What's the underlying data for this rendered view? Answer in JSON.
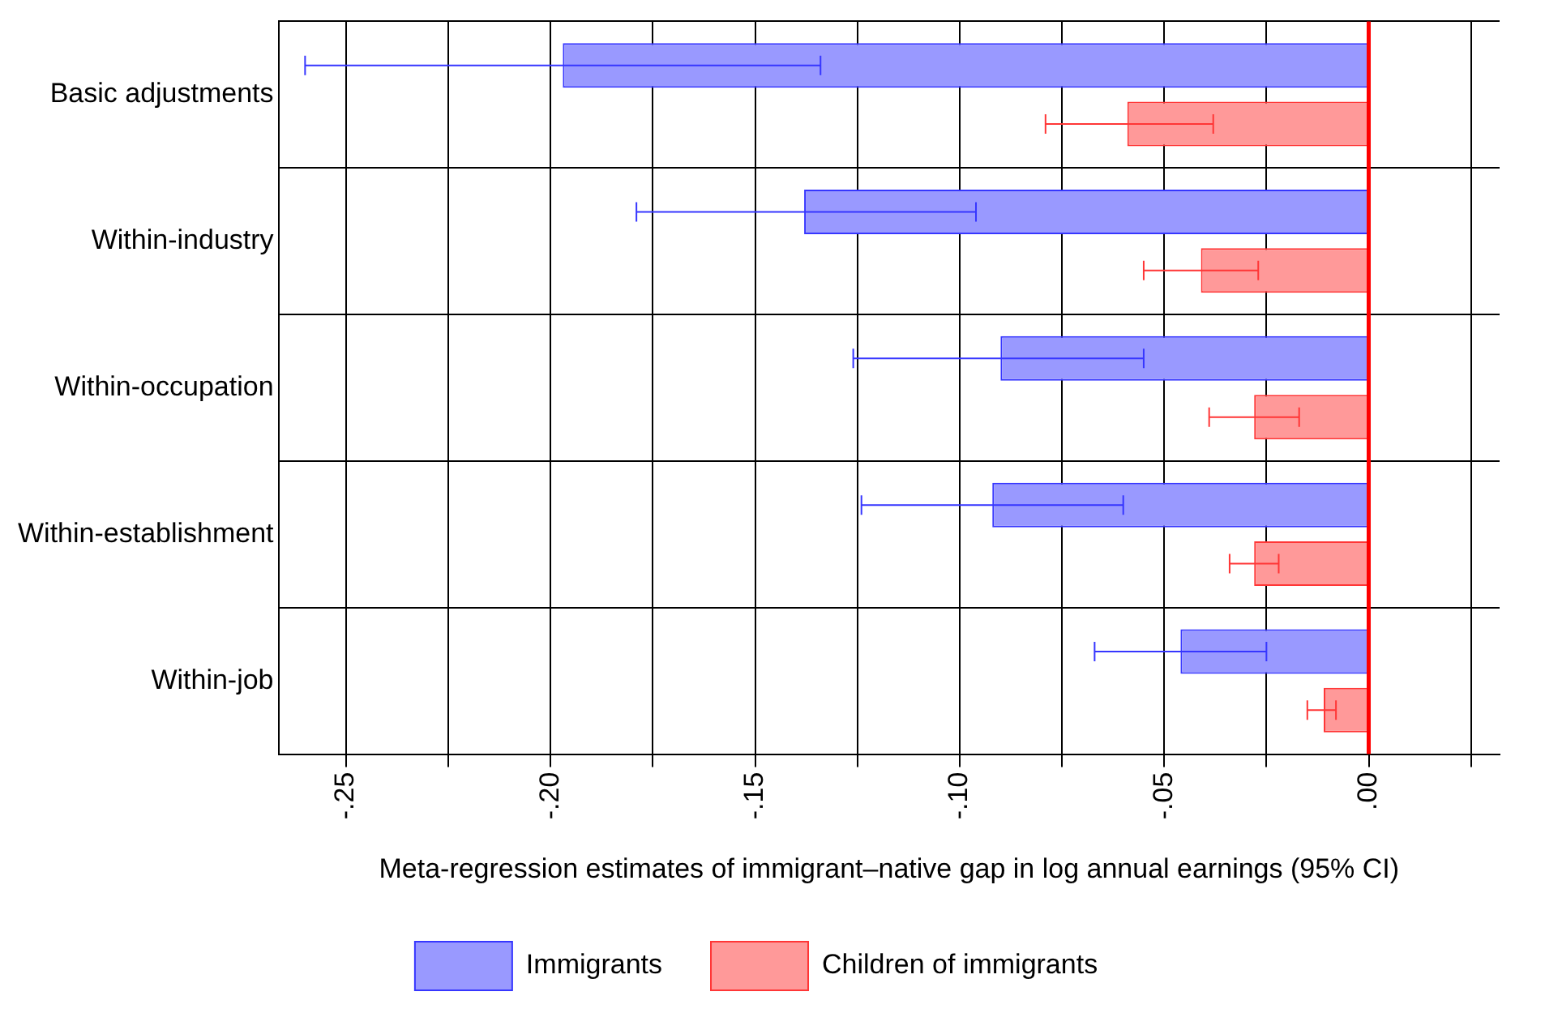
{
  "chart_data": {
    "type": "bar",
    "orientation": "horizontal",
    "xlabel": "Meta-regression estimates of immigrant–native gap in log annual earnings (95% CI)",
    "categories": [
      "Basic adjustments",
      "Within-industry",
      "Within-occupation",
      "Within-establishment",
      "Within-job"
    ],
    "series": [
      {
        "name": "Immigrants",
        "color": "#9999ff",
        "values": [
          -0.197,
          -0.138,
          -0.09,
          -0.092,
          -0.046
        ],
        "errors": [
          [
            -0.26,
            -0.134
          ],
          [
            -0.179,
            -0.096
          ],
          [
            -0.126,
            -0.055
          ],
          [
            -0.124,
            -0.06
          ],
          [
            -0.067,
            -0.025
          ]
        ]
      },
      {
        "name": "Children of immigrants",
        "color": "#ff9999",
        "values": [
          -0.059,
          -0.041,
          -0.028,
          -0.028,
          -0.011
        ],
        "errors": [
          [
            -0.079,
            -0.038
          ],
          [
            -0.055,
            -0.027
          ],
          [
            -0.039,
            -0.017
          ],
          [
            -0.034,
            -0.022
          ],
          [
            -0.015,
            -0.008
          ]
        ]
      }
    ],
    "xlim": [
      -0.2665,
      0.032
    ],
    "xticks": [
      {
        "value": -0.25,
        "label": "-.25"
      },
      {
        "value": -0.225,
        "label": null
      },
      {
        "value": -0.2,
        "label": "-.20"
      },
      {
        "value": -0.175,
        "label": null
      },
      {
        "value": -0.15,
        "label": "-.15"
      },
      {
        "value": -0.125,
        "label": null
      },
      {
        "value": -0.1,
        "label": "-.10"
      },
      {
        "value": -0.075,
        "label": null
      },
      {
        "value": -0.05,
        "label": "-.05"
      },
      {
        "value": -0.025,
        "label": null
      },
      {
        "value": 0,
        "label": ".00"
      },
      {
        "value": 0.025,
        "label": null
      }
    ],
    "ref_lines": [
      {
        "axis": "x",
        "value": 0,
        "color": "#ff0000"
      }
    ],
    "grid": true,
    "legend": "bottom"
  }
}
